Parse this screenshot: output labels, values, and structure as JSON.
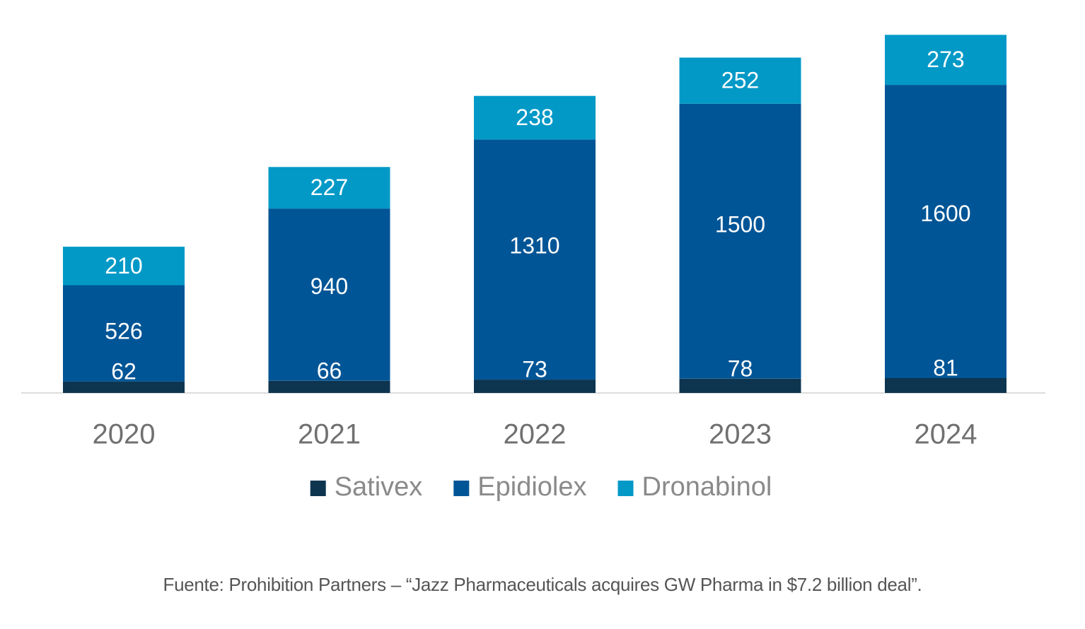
{
  "chart_data": {
    "type": "bar",
    "stacked": true,
    "categories": [
      "2020",
      "2021",
      "2022",
      "2023",
      "2024"
    ],
    "series": [
      {
        "name": "Sativex",
        "color": "#0e3550",
        "values": [
          62,
          66,
          73,
          78,
          81
        ]
      },
      {
        "name": "Epidiolex",
        "color": "#005596",
        "values": [
          526,
          940,
          1310,
          1500,
          1600
        ]
      },
      {
        "name": "Dronabinol",
        "color": "#0399c7",
        "values": [
          210,
          227,
          238,
          252,
          273
        ]
      }
    ],
    "title": "",
    "xlabel": "",
    "ylabel": "",
    "ylim": [
      0,
      1990
    ],
    "grid": false,
    "legend": "bottom",
    "data_labels": true
  },
  "source_note": "Fuente: Prohibition Partners – “Jazz Pharmaceuticals acquires GW Pharma in $7.2 billion deal”."
}
